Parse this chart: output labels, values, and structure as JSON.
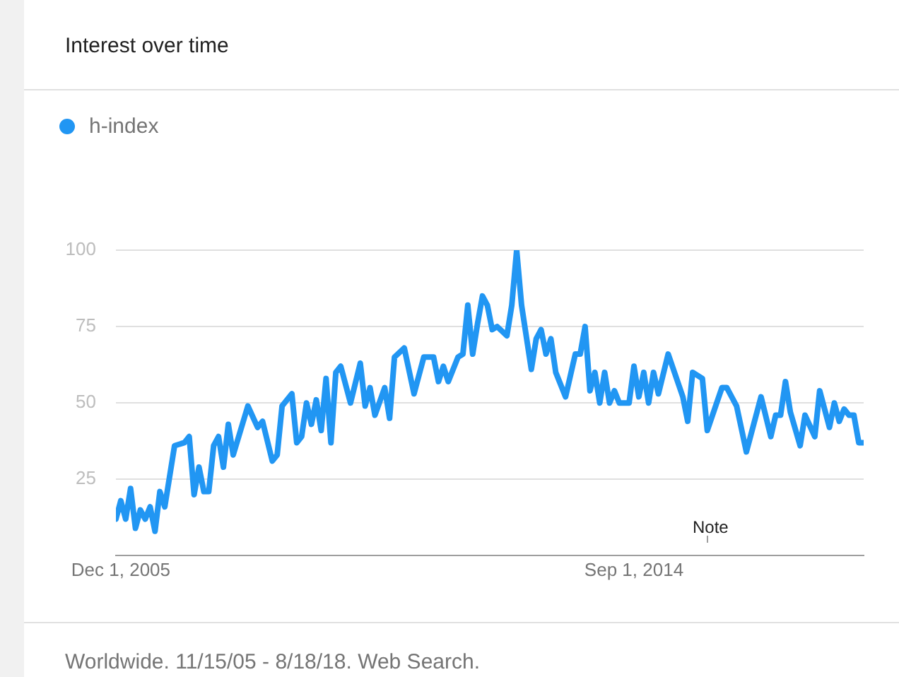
{
  "chart_data": {
    "type": "line",
    "title": "Interest over time",
    "xlim": [
      "2005-11-01",
      "2018-08-01"
    ],
    "ylim": [
      0,
      100
    ],
    "yticks": [
      25,
      50,
      75,
      100
    ],
    "xticks": [
      {
        "value": "2005-12-01",
        "label": "Dec 1, 2005"
      },
      {
        "value": "2014-09-01",
        "label": "Sep 1, 2014"
      }
    ],
    "grid": "y",
    "legend": "top left",
    "marker": "none",
    "series": [
      {
        "name": "h-index",
        "color": "#2196f3",
        "x": [
          "2005-11",
          "2005-12",
          "2006-01",
          "2006-02",
          "2006-03",
          "2006-04",
          "2006-05",
          "2006-06",
          "2006-07",
          "2006-08",
          "2006-09",
          "2006-11",
          "2007-01",
          "2007-02",
          "2007-03",
          "2007-04",
          "2007-05",
          "2007-06",
          "2007-07",
          "2007-08",
          "2007-09",
          "2007-10",
          "2007-11",
          "2008-02",
          "2008-04",
          "2008-05",
          "2008-07",
          "2008-08",
          "2008-09",
          "2008-11",
          "2008-12",
          "2009-01",
          "2009-02",
          "2009-03",
          "2009-04",
          "2009-05",
          "2009-06",
          "2009-07",
          "2009-08",
          "2009-09",
          "2009-11",
          "2010-01",
          "2010-02",
          "2010-03",
          "2010-04",
          "2010-06",
          "2010-07",
          "2010-08",
          "2010-10",
          "2010-12",
          "2011-02",
          "2011-04",
          "2011-05",
          "2011-06",
          "2011-07",
          "2011-09",
          "2011-10",
          "2011-11",
          "2011-12",
          "2012-01",
          "2012-02",
          "2012-03",
          "2012-04",
          "2012-05",
          "2012-07",
          "2012-08",
          "2012-09",
          "2012-10",
          "2012-12",
          "2013-01",
          "2013-02",
          "2013-03",
          "2013-04",
          "2013-05",
          "2013-07",
          "2013-09",
          "2013-10",
          "2013-11",
          "2013-12",
          "2014-01",
          "2014-02",
          "2014-03",
          "2014-04",
          "2014-05",
          "2014-06",
          "2014-08",
          "2014-09",
          "2014-10",
          "2014-11",
          "2014-12",
          "2015-01",
          "2015-02",
          "2015-04",
          "2015-07",
          "2015-08",
          "2015-09",
          "2015-11",
          "2015-12",
          "2016-03",
          "2016-04",
          "2016-06",
          "2016-08",
          "2016-11",
          "2017-01",
          "2017-02",
          "2017-03",
          "2017-04",
          "2017-05",
          "2017-07",
          "2017-08",
          "2017-10",
          "2017-11",
          "2018-01",
          "2018-02",
          "2018-03",
          "2018-04",
          "2018-05",
          "2018-06",
          "2018-07",
          "2018-08"
        ],
        "values": [
          12,
          18,
          12,
          22,
          9,
          15,
          12,
          16,
          8,
          21,
          16,
          36,
          37,
          39,
          20,
          29,
          21,
          21,
          36,
          39,
          29,
          43,
          33,
          49,
          42,
          44,
          31,
          33,
          49,
          53,
          37,
          39,
          50,
          43,
          51,
          41,
          58,
          37,
          60,
          62,
          50,
          63,
          49,
          55,
          46,
          55,
          45,
          65,
          68,
          53,
          65,
          65,
          57,
          62,
          57,
          65,
          66,
          82,
          66,
          76,
          85,
          82,
          74,
          75,
          72,
          82,
          100,
          82,
          61,
          71,
          74,
          66,
          71,
          60,
          52,
          66,
          66,
          75,
          54,
          60,
          50,
          60,
          50,
          54,
          50,
          50,
          62,
          52,
          60,
          50,
          60,
          53,
          66,
          52,
          44,
          60,
          58,
          41,
          55,
          55,
          49,
          34,
          52,
          39,
          46,
          46,
          57,
          47,
          36,
          46,
          39,
          54,
          42,
          50,
          44,
          48,
          46,
          46,
          37,
          37
        ]
      }
    ],
    "annotations": [
      "Note",
      "Worldwide. 11/15/05 - 8/18/18. Web Search."
    ]
  }
}
